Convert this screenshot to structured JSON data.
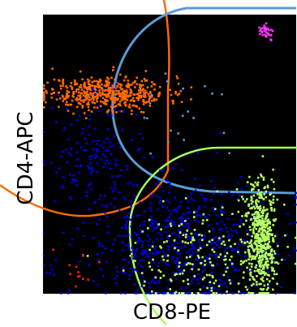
{
  "chart_data": {
    "type": "scatter",
    "title": "",
    "xlabel": "CD8-PE",
    "ylabel": "CD4-APC",
    "xlim": [
      0,
      100
    ],
    "ylim": [
      0,
      100
    ],
    "grid": false,
    "background": "#000000",
    "series": [
      {
        "color": "#ff6a00",
        "cx": 25,
        "cy": 72,
        "sx": 12,
        "sy": 3,
        "n": 520,
        "seed": 11
      },
      {
        "color": "#0000e0",
        "cx": 55,
        "cy": 18,
        "sx": 20,
        "sy": 12,
        "n": 650,
        "seed": 21
      },
      {
        "color": "#0000e0",
        "cx": 20,
        "cy": 50,
        "sx": 8,
        "sy": 10,
        "n": 150,
        "seed": 22
      },
      {
        "color": "#b6ff66",
        "cx": 86,
        "cy": 20,
        "sx": 3,
        "sy": 10,
        "n": 520,
        "seed": 31
      },
      {
        "color": "#b6ff66",
        "cx": 60,
        "cy": 14,
        "sx": 16,
        "sy": 10,
        "n": 200,
        "seed": 32
      },
      {
        "color": "#ff33ff",
        "cx": 88,
        "cy": 94,
        "sx": 1.6,
        "sy": 1.2,
        "n": 40,
        "seed": 41
      },
      {
        "color": "#5b9bd5",
        "cx": 55,
        "cy": 65,
        "sx": 12,
        "sy": 10,
        "n": 20,
        "seed": 51
      },
      {
        "color": "#ff1a1a",
        "cx": 12,
        "cy": 10,
        "sx": 6,
        "sy": 4,
        "n": 12,
        "seed": 61
      }
    ],
    "gates": [
      {
        "name": "",
        "color": "#ff6a00"
      },
      {
        "name": "",
        "color": "#5b9bd5"
      },
      {
        "name": "",
        "color": "#a8ff60"
      }
    ]
  }
}
